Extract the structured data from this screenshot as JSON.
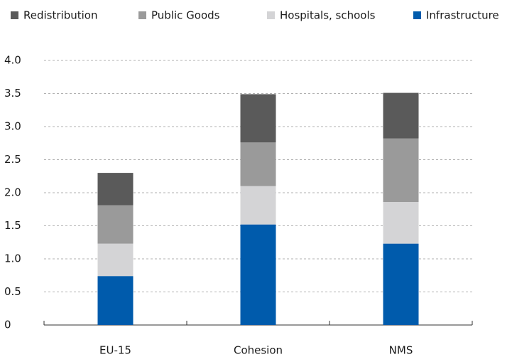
{
  "chart_data": {
    "type": "stacked_bar",
    "categories": [
      "EU-15",
      "Cohesion",
      "NMS"
    ],
    "series": [
      {
        "name": "Redistribution",
        "color": "#5a5a5a",
        "values": [
          0.49,
          0.73,
          0.69
        ]
      },
      {
        "name": "Public Goods",
        "color": "#9a9a9a",
        "values": [
          0.58,
          0.66,
          0.96
        ]
      },
      {
        "name": "Hospitals, schools",
        "color": "#d4d4d6",
        "values": [
          0.49,
          0.58,
          0.63
        ]
      },
      {
        "name": "Infrastructure",
        "color": "#005bac",
        "values": [
          0.74,
          1.52,
          1.23
        ]
      }
    ],
    "ylim": [
      0,
      4
    ],
    "yticks": [
      0,
      0.5,
      {
        "value": 1,
        "label": "1.0"
      },
      1.5,
      {
        "value": 2,
        "label": "2.0"
      },
      2.5,
      {
        "value": 3,
        "label": "3.0"
      },
      3.5,
      {
        "value": 4,
        "label": "4.0"
      }
    ],
    "grid": true,
    "legend": "top"
  }
}
